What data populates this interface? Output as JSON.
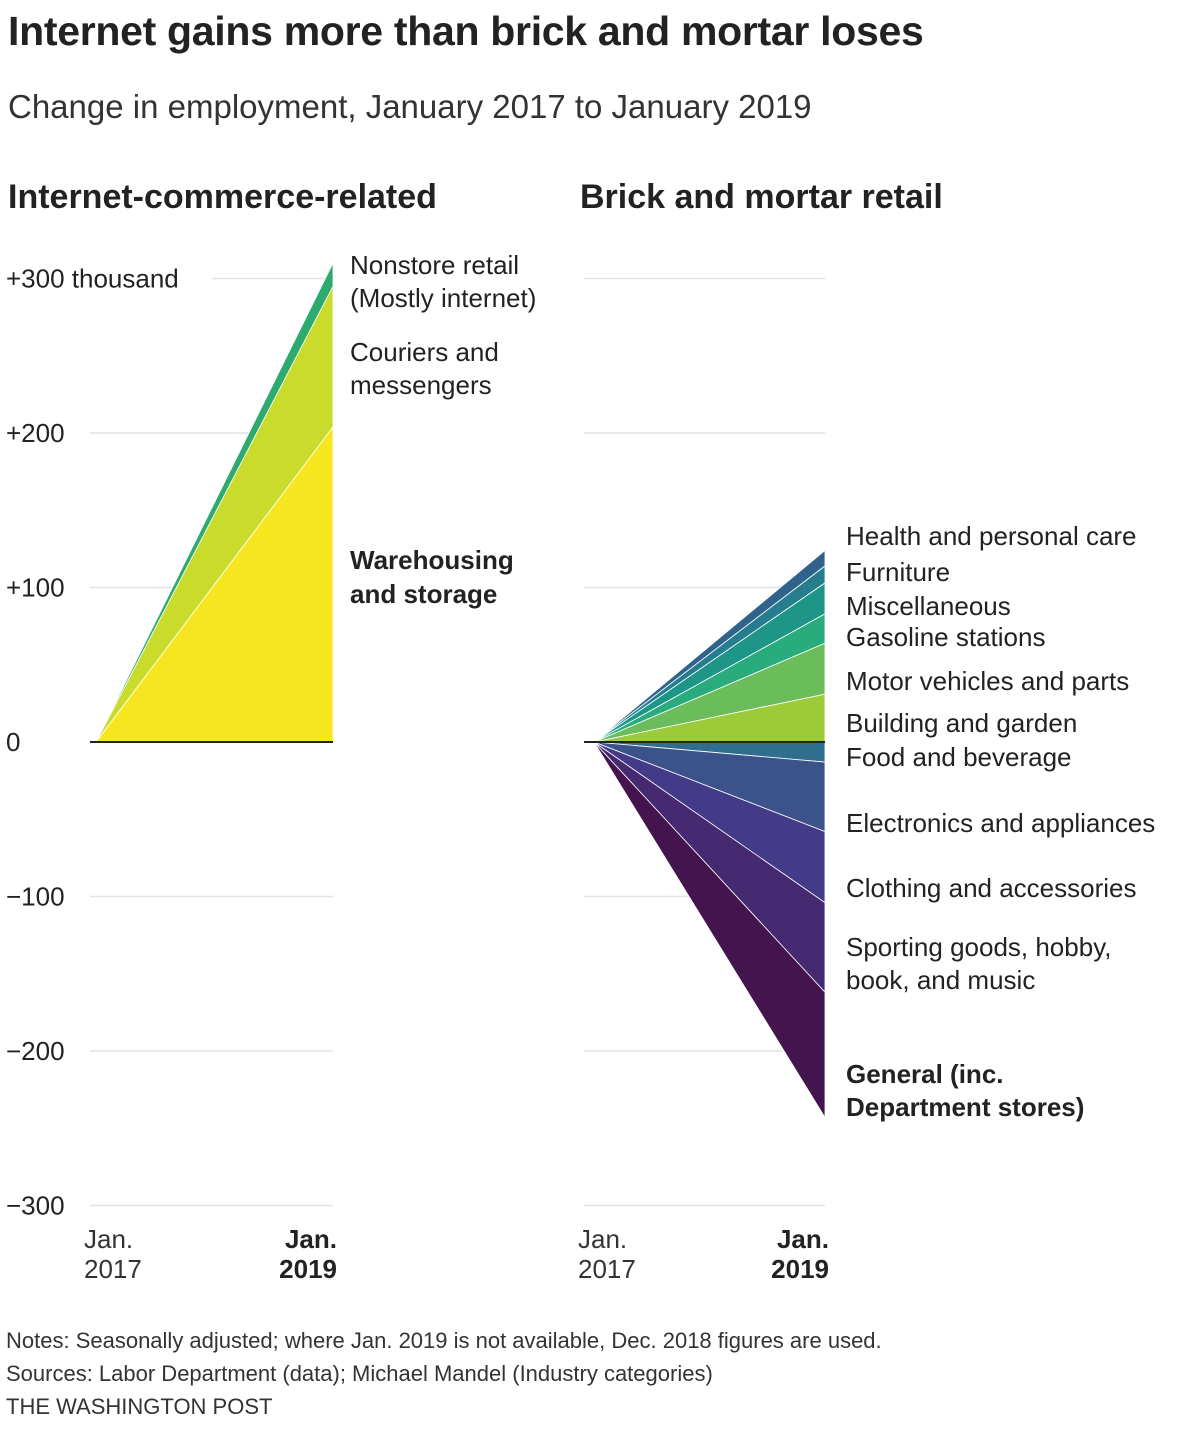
{
  "title": "Internet gains more than brick and mortar loses",
  "subtitle": "Change in employment, January 2017 to January 2019",
  "footer": {
    "notes": "Notes: Seasonally adjusted; where Jan. 2019 is not available, Dec. 2018 figures are used.",
    "sources": "Sources: Labor Department (data); Michael Mandel (Industry categories)",
    "credit": "THE WASHINGTON POST"
  },
  "y_ticks": [
    {
      "value": 300,
      "label": "+300 thousand"
    },
    {
      "value": 200,
      "label": "+200"
    },
    {
      "value": 100,
      "label": "+100"
    },
    {
      "value": 0,
      "label": "0"
    },
    {
      "value": -100,
      "label": "−100"
    },
    {
      "value": -200,
      "label": "−200"
    },
    {
      "value": -300,
      "label": "−300"
    }
  ],
  "x_labels": {
    "start": [
      "Jan.",
      "2017"
    ],
    "end": [
      "Jan.",
      "2019"
    ]
  },
  "chart_data": [
    {
      "type": "area",
      "title": "Internet-commerce-related",
      "x": [
        "Jan. 2017",
        "Jan. 2019"
      ],
      "ylim": [
        -300,
        300
      ],
      "series": [
        {
          "name": "Warehousing and storage",
          "values": [
            0,
            204
          ],
          "color": "#f5e61f",
          "bold": true
        },
        {
          "name": "Couriers and messengers",
          "values": [
            0,
            91
          ],
          "color": "#c9dc2c",
          "bold": false
        },
        {
          "name": "Nonstore retail (Mostly internet)",
          "values": [
            0,
            15
          ],
          "color": "#2dab6e",
          "bold": false
        }
      ]
    },
    {
      "type": "area",
      "title": "Brick and mortar retail",
      "x": [
        "Jan. 2017",
        "Jan. 2019"
      ],
      "ylim": [
        -300,
        300
      ],
      "series": [
        {
          "name": "Building and garden",
          "values": [
            0,
            31
          ],
          "color": "#9ccb3a",
          "bold": false
        },
        {
          "name": "Motor vehicles and parts",
          "values": [
            0,
            33
          ],
          "color": "#6abd5a",
          "bold": false
        },
        {
          "name": "Gasoline stations",
          "values": [
            0,
            19
          ],
          "color": "#2aab7d",
          "bold": false
        },
        {
          "name": "Miscellaneous",
          "values": [
            0,
            20
          ],
          "color": "#1e9687",
          "bold": false
        },
        {
          "name": "Furniture",
          "values": [
            0,
            11
          ],
          "color": "#257d8d",
          "bold": false
        },
        {
          "name": "Health and personal care",
          "values": [
            0,
            10
          ],
          "color": "#30638c",
          "bold": false
        },
        {
          "name": "Food and beverage",
          "values": [
            0,
            -13
          ],
          "color": "#2f6e8e",
          "bold": false
        },
        {
          "name": "Electronics and appliances",
          "values": [
            0,
            -45
          ],
          "color": "#3b528b",
          "bold": false
        },
        {
          "name": "Clothing and accessories",
          "values": [
            0,
            -46
          ],
          "color": "#433a88",
          "bold": false
        },
        {
          "name": "Sporting goods, hobby, book, and music",
          "values": [
            0,
            -58
          ],
          "color": "#452a71",
          "bold": false
        },
        {
          "name": "General (inc. Department stores)",
          "values": [
            0,
            -81
          ],
          "color": "#44144e",
          "bold": true
        }
      ]
    }
  ]
}
